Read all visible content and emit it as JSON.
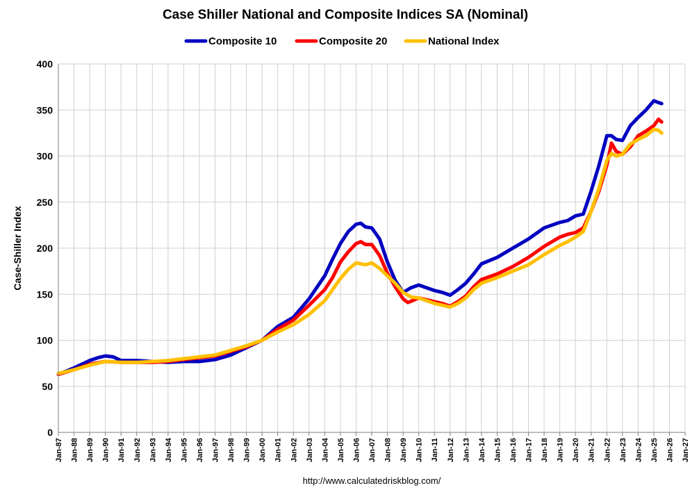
{
  "chart_data": {
    "type": "line",
    "title": "Case Shiller National and Composite Indices SA (Nominal)",
    "ylabel": "Case-Shiller Index",
    "xlabel": "",
    "source": "http://www.calculatedriskblog.com/",
    "ylim": [
      0,
      400
    ],
    "xlim": [
      1987,
      2027
    ],
    "yticks": [
      "0",
      "50",
      "100",
      "150",
      "200",
      "250",
      "300",
      "350",
      "400"
    ],
    "xticks": [
      "Jan-87",
      "Jan-88",
      "Jan-89",
      "Jan-90",
      "Jan-91",
      "Jan-92",
      "Jan-93",
      "Jan-94",
      "Jan-95",
      "Jan-96",
      "Jan-97",
      "Jan-98",
      "Jan-99",
      "Jan-00",
      "Jan-01",
      "Jan-02",
      "Jan-03",
      "Jan-04",
      "Jan-05",
      "Jan-06",
      "Jan-07",
      "Jan-08",
      "Jan-09",
      "Jan-10",
      "Jan-11",
      "Jan-12",
      "Jan-13",
      "Jan-14",
      "Jan-15",
      "Jan-16",
      "Jan-17",
      "Jan-18",
      "Jan-19",
      "Jan-20",
      "Jan-21",
      "Jan-22",
      "Jan-23",
      "Jan-24",
      "Jan-25",
      "Jan-26",
      "Jan-27"
    ],
    "grid": true,
    "legend_position": "top",
    "series": [
      {
        "name": "Composite 10",
        "color": "#0000c0",
        "x": [
          1987,
          1988,
          1989,
          1989.5,
          1990,
          1990.5,
          1991,
          1992,
          1993,
          1994,
          1995,
          1996,
          1997,
          1998,
          1999,
          2000,
          2001,
          2002,
          2003,
          2004,
          2004.5,
          2005,
          2005.5,
          2006,
          2006.3,
          2006.6,
          2007,
          2007.5,
          2008,
          2008.5,
          2009,
          2009.5,
          2010,
          2010.5,
          2011,
          2011.5,
          2012,
          2012.5,
          2013,
          2013.5,
          2014,
          2015,
          2016,
          2017,
          2018,
          2019,
          2019.5,
          2020,
          2020.5,
          2021,
          2021.5,
          2022,
          2022.3,
          2022.6,
          2023,
          2023.5,
          2024,
          2024.5,
          2025,
          2025.3,
          2025.5
        ],
        "y": [
          63,
          70,
          78,
          81,
          83,
          82,
          78,
          78,
          77,
          76,
          77,
          77,
          79,
          84,
          92,
          100,
          115,
          125,
          145,
          170,
          188,
          205,
          218,
          226,
          227,
          223,
          222,
          210,
          185,
          165,
          152,
          157,
          160,
          157,
          154,
          152,
          149,
          155,
          162,
          172,
          183,
          190,
          200,
          210,
          222,
          228,
          230,
          235,
          237,
          262,
          290,
          322,
          322,
          318,
          317,
          333,
          342,
          350,
          360,
          358,
          357
        ]
      },
      {
        "name": "Composite 20",
        "color": "#ff0000",
        "x": [
          1987,
          1988,
          1989,
          1990,
          1991,
          1992,
          1993,
          1994,
          1995,
          1996,
          1997,
          1998,
          1999,
          2000,
          2001,
          2002,
          2003,
          2004,
          2004.5,
          2005,
          2005.5,
          2006,
          2006.3,
          2006.6,
          2007,
          2007.5,
          2008,
          2008.5,
          2009,
          2009.3,
          2009.6,
          2010,
          2010.5,
          2011,
          2011.5,
          2012,
          2012.5,
          2013,
          2013.5,
          2014,
          2015,
          2016,
          2017,
          2018,
          2019,
          2019.5,
          2020,
          2020.5,
          2021,
          2021.5,
          2022,
          2022.3,
          2022.6,
          2023,
          2023.5,
          2024,
          2024.5,
          2025,
          2025.3,
          2025.5
        ],
        "y": [
          63,
          68,
          74,
          77,
          76,
          76,
          76,
          77,
          79,
          81,
          83,
          88,
          93,
          100,
          112,
          122,
          138,
          155,
          168,
          185,
          196,
          205,
          207,
          204,
          204,
          192,
          173,
          158,
          145,
          141,
          143,
          146,
          144,
          142,
          140,
          137,
          142,
          148,
          158,
          166,
          172,
          180,
          190,
          202,
          212,
          215,
          217,
          222,
          240,
          262,
          290,
          314,
          305,
          302,
          310,
          322,
          327,
          333,
          340,
          337
        ]
      },
      {
        "name": "National Index",
        "color": "#ffc000",
        "x": [
          1987,
          1988,
          1989,
          1990,
          1991,
          1992,
          1993,
          1994,
          1995,
          1996,
          1997,
          1998,
          1999,
          2000,
          2001,
          2002,
          2003,
          2004,
          2004.5,
          2005,
          2005.5,
          2006,
          2006.3,
          2006.6,
          2007,
          2007.5,
          2008,
          2008.5,
          2009,
          2009.5,
          2010,
          2010.5,
          2011,
          2011.5,
          2012,
          2012.5,
          2013,
          2013.5,
          2014,
          2015,
          2016,
          2017,
          2018,
          2019,
          2019.5,
          2020,
          2020.5,
          2021,
          2021.5,
          2022,
          2022.3,
          2022.6,
          2023,
          2023.5,
          2024,
          2024.5,
          2025,
          2025.3,
          2025.5
        ],
        "y": [
          64,
          68,
          73,
          77,
          76,
          76,
          77,
          78,
          80,
          82,
          84,
          89,
          94,
          100,
          109,
          117,
          128,
          143,
          155,
          167,
          177,
          184,
          183,
          182,
          184,
          178,
          170,
          162,
          152,
          147,
          146,
          143,
          140,
          138,
          136,
          140,
          146,
          155,
          162,
          168,
          175,
          182,
          193,
          203,
          207,
          212,
          218,
          240,
          265,
          295,
          303,
          300,
          302,
          313,
          318,
          322,
          329,
          328,
          325
        ]
      }
    ]
  }
}
